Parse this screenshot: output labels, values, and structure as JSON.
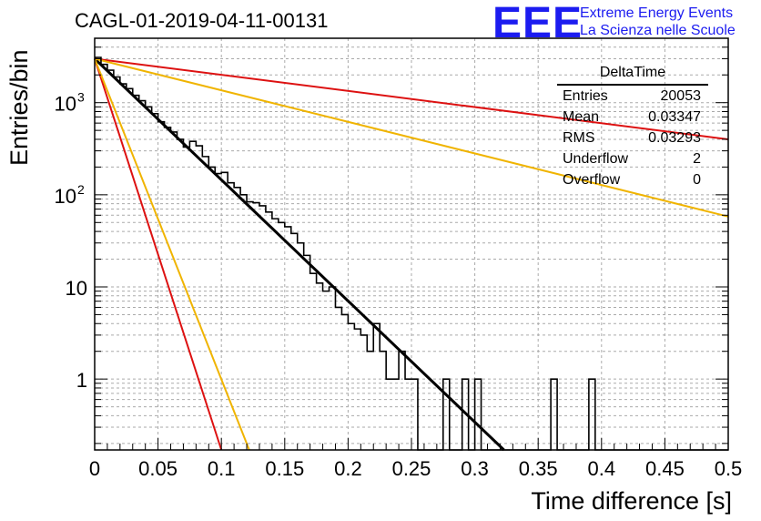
{
  "title": "CAGL-01-2019-04-11-00131",
  "logo": {
    "text": "EEE",
    "line1": "Extreme Energy Events",
    "line2": "La Scienza nelle Scuole",
    "color": "#1c1cf0"
  },
  "stats": {
    "name": "DeltaTime",
    "rows": [
      {
        "label": "Entries",
        "value": "20053"
      },
      {
        "label": "Mean",
        "value": "0.03347"
      },
      {
        "label": "RMS",
        "value": "0.03293"
      },
      {
        "label": "Underflow",
        "value": "2"
      },
      {
        "label": "Overflow",
        "value": "0"
      }
    ]
  },
  "chart_data": {
    "type": "line",
    "xlabel": "Time difference [s]",
    "ylabel": "Entries/bin",
    "xlim": [
      0,
      0.5
    ],
    "ylim": [
      0.17,
      5000
    ],
    "yscale": "log",
    "grid": true,
    "x_ticks": [
      "0",
      "0.05",
      "0.1",
      "0.15",
      "0.2",
      "0.25",
      "0.3",
      "0.35",
      "0.4",
      "0.45",
      "0.5"
    ],
    "y_ticks": [
      {
        "value": 1,
        "label": "1"
      },
      {
        "value": 10,
        "label": "10"
      },
      {
        "value": 100,
        "label": "10",
        "sup": "2"
      },
      {
        "value": 1000,
        "label": "10",
        "sup": "3"
      }
    ],
    "histogram": {
      "bin_width": 0.005,
      "counts": [
        3100,
        2600,
        2250,
        1900,
        1600,
        1420,
        1200,
        1050,
        900,
        760,
        620,
        540,
        480,
        400,
        330,
        380,
        340,
        260,
        200,
        170,
        175,
        135,
        120,
        100,
        84,
        82,
        76,
        65,
        55,
        50,
        45,
        38,
        30,
        22,
        14,
        11,
        9,
        10,
        6,
        5,
        4,
        3.5,
        3,
        2,
        4,
        2,
        1,
        1,
        2,
        1,
        1,
        0,
        0,
        0,
        0,
        1,
        0,
        0,
        1,
        0,
        1,
        0,
        0,
        0,
        0,
        0,
        0,
        0,
        0,
        0,
        0,
        0,
        1,
        0,
        0,
        0,
        0,
        0,
        1,
        0,
        0,
        0,
        0,
        0,
        0,
        0,
        0,
        0,
        0,
        0,
        0,
        0,
        0,
        0,
        0,
        0,
        0,
        0,
        0,
        0
      ],
      "color": "#000000"
    },
    "fits": [
      {
        "x": [
          0,
          0.323
        ],
        "y": [
          3000,
          0.17
        ],
        "color": "#000000"
      },
      {
        "x": [
          0,
          0.1
        ],
        "y": [
          3000,
          0.17
        ],
        "color": "#dd1111"
      },
      {
        "x": [
          0,
          0.5
        ],
        "y": [
          3000,
          400
        ],
        "color": "#dd1111"
      },
      {
        "x": [
          0,
          0.122
        ],
        "y": [
          3000,
          0.17
        ],
        "color": "#f0b400"
      },
      {
        "x": [
          0,
          0.5
        ],
        "y": [
          3000,
          58
        ],
        "color": "#f0b400"
      }
    ]
  }
}
